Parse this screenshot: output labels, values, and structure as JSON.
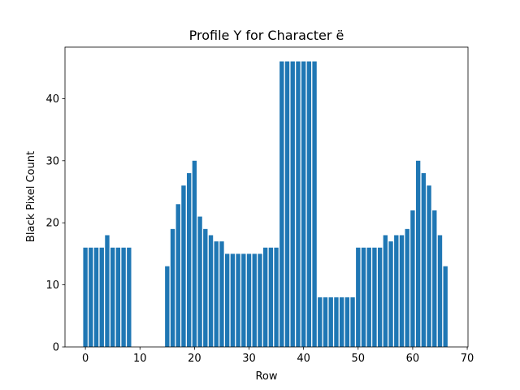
{
  "chart_data": {
    "type": "bar",
    "title": "Profile Y for Character ë",
    "xlabel": "Row",
    "ylabel": "Black Pixel Count",
    "x": [
      0,
      1,
      2,
      3,
      4,
      5,
      6,
      7,
      8,
      9,
      10,
      11,
      12,
      13,
      14,
      15,
      16,
      17,
      18,
      19,
      20,
      21,
      22,
      23,
      24,
      25,
      26,
      27,
      28,
      29,
      30,
      31,
      32,
      33,
      34,
      35,
      36,
      37,
      38,
      39,
      40,
      41,
      42,
      43,
      44,
      45,
      46,
      47,
      48,
      49,
      50,
      51,
      52,
      53,
      54,
      55,
      56,
      57,
      58,
      59,
      60,
      61,
      62,
      63,
      64,
      65,
      66
    ],
    "values": [
      16,
      16,
      16,
      16,
      18,
      16,
      16,
      16,
      16,
      0,
      0,
      0,
      0,
      0,
      0,
      13,
      19,
      23,
      26,
      28,
      30,
      21,
      19,
      18,
      17,
      17,
      15,
      15,
      15,
      15,
      15,
      15,
      15,
      16,
      16,
      16,
      46,
      46,
      46,
      46,
      46,
      46,
      46,
      8,
      8,
      8,
      8,
      8,
      8,
      8,
      16,
      16,
      16,
      16,
      16,
      18,
      17,
      18,
      18,
      19,
      22,
      30,
      28,
      26,
      22,
      18,
      13
    ],
    "color": "#1f77b4",
    "bar_width": 0.8,
    "xlim": [
      -3.74,
      70.14
    ],
    "xticks": [
      0,
      10,
      20,
      30,
      40,
      50,
      60,
      70
    ],
    "ylim": [
      0,
      48.3
    ],
    "yticks": [
      0,
      10,
      20,
      30,
      40
    ]
  }
}
